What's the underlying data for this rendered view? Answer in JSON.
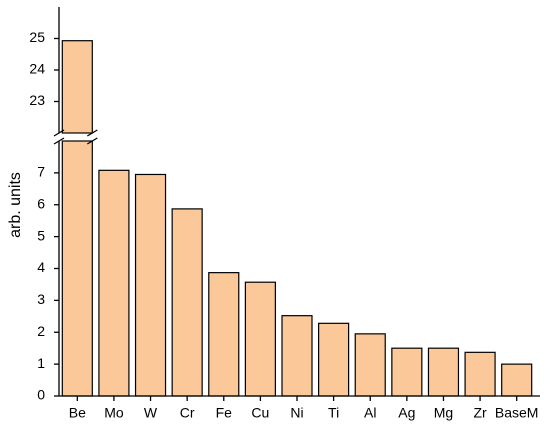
{
  "chart_data": {
    "type": "bar",
    "ylabel": "arb. units",
    "categories": [
      "Be",
      "Mo",
      "W",
      "Cr",
      "Fe",
      "Cu",
      "Ni",
      "Ti",
      "Al",
      "Ag",
      "Mg",
      "Zr",
      "BaseM"
    ],
    "values": [
      24.93,
      7.08,
      6.95,
      5.87,
      3.87,
      3.57,
      2.52,
      2.28,
      1.95,
      1.5,
      1.5,
      1.37,
      1.0
    ],
    "color": "#fac899",
    "segments": [
      {
        "ylim": [
          0,
          8
        ],
        "yticks": [
          0,
          1,
          2,
          3,
          4,
          5,
          6,
          7
        ]
      },
      {
        "ylim": [
          22,
          26
        ],
        "yticks": [
          23,
          24,
          25
        ]
      }
    ]
  }
}
